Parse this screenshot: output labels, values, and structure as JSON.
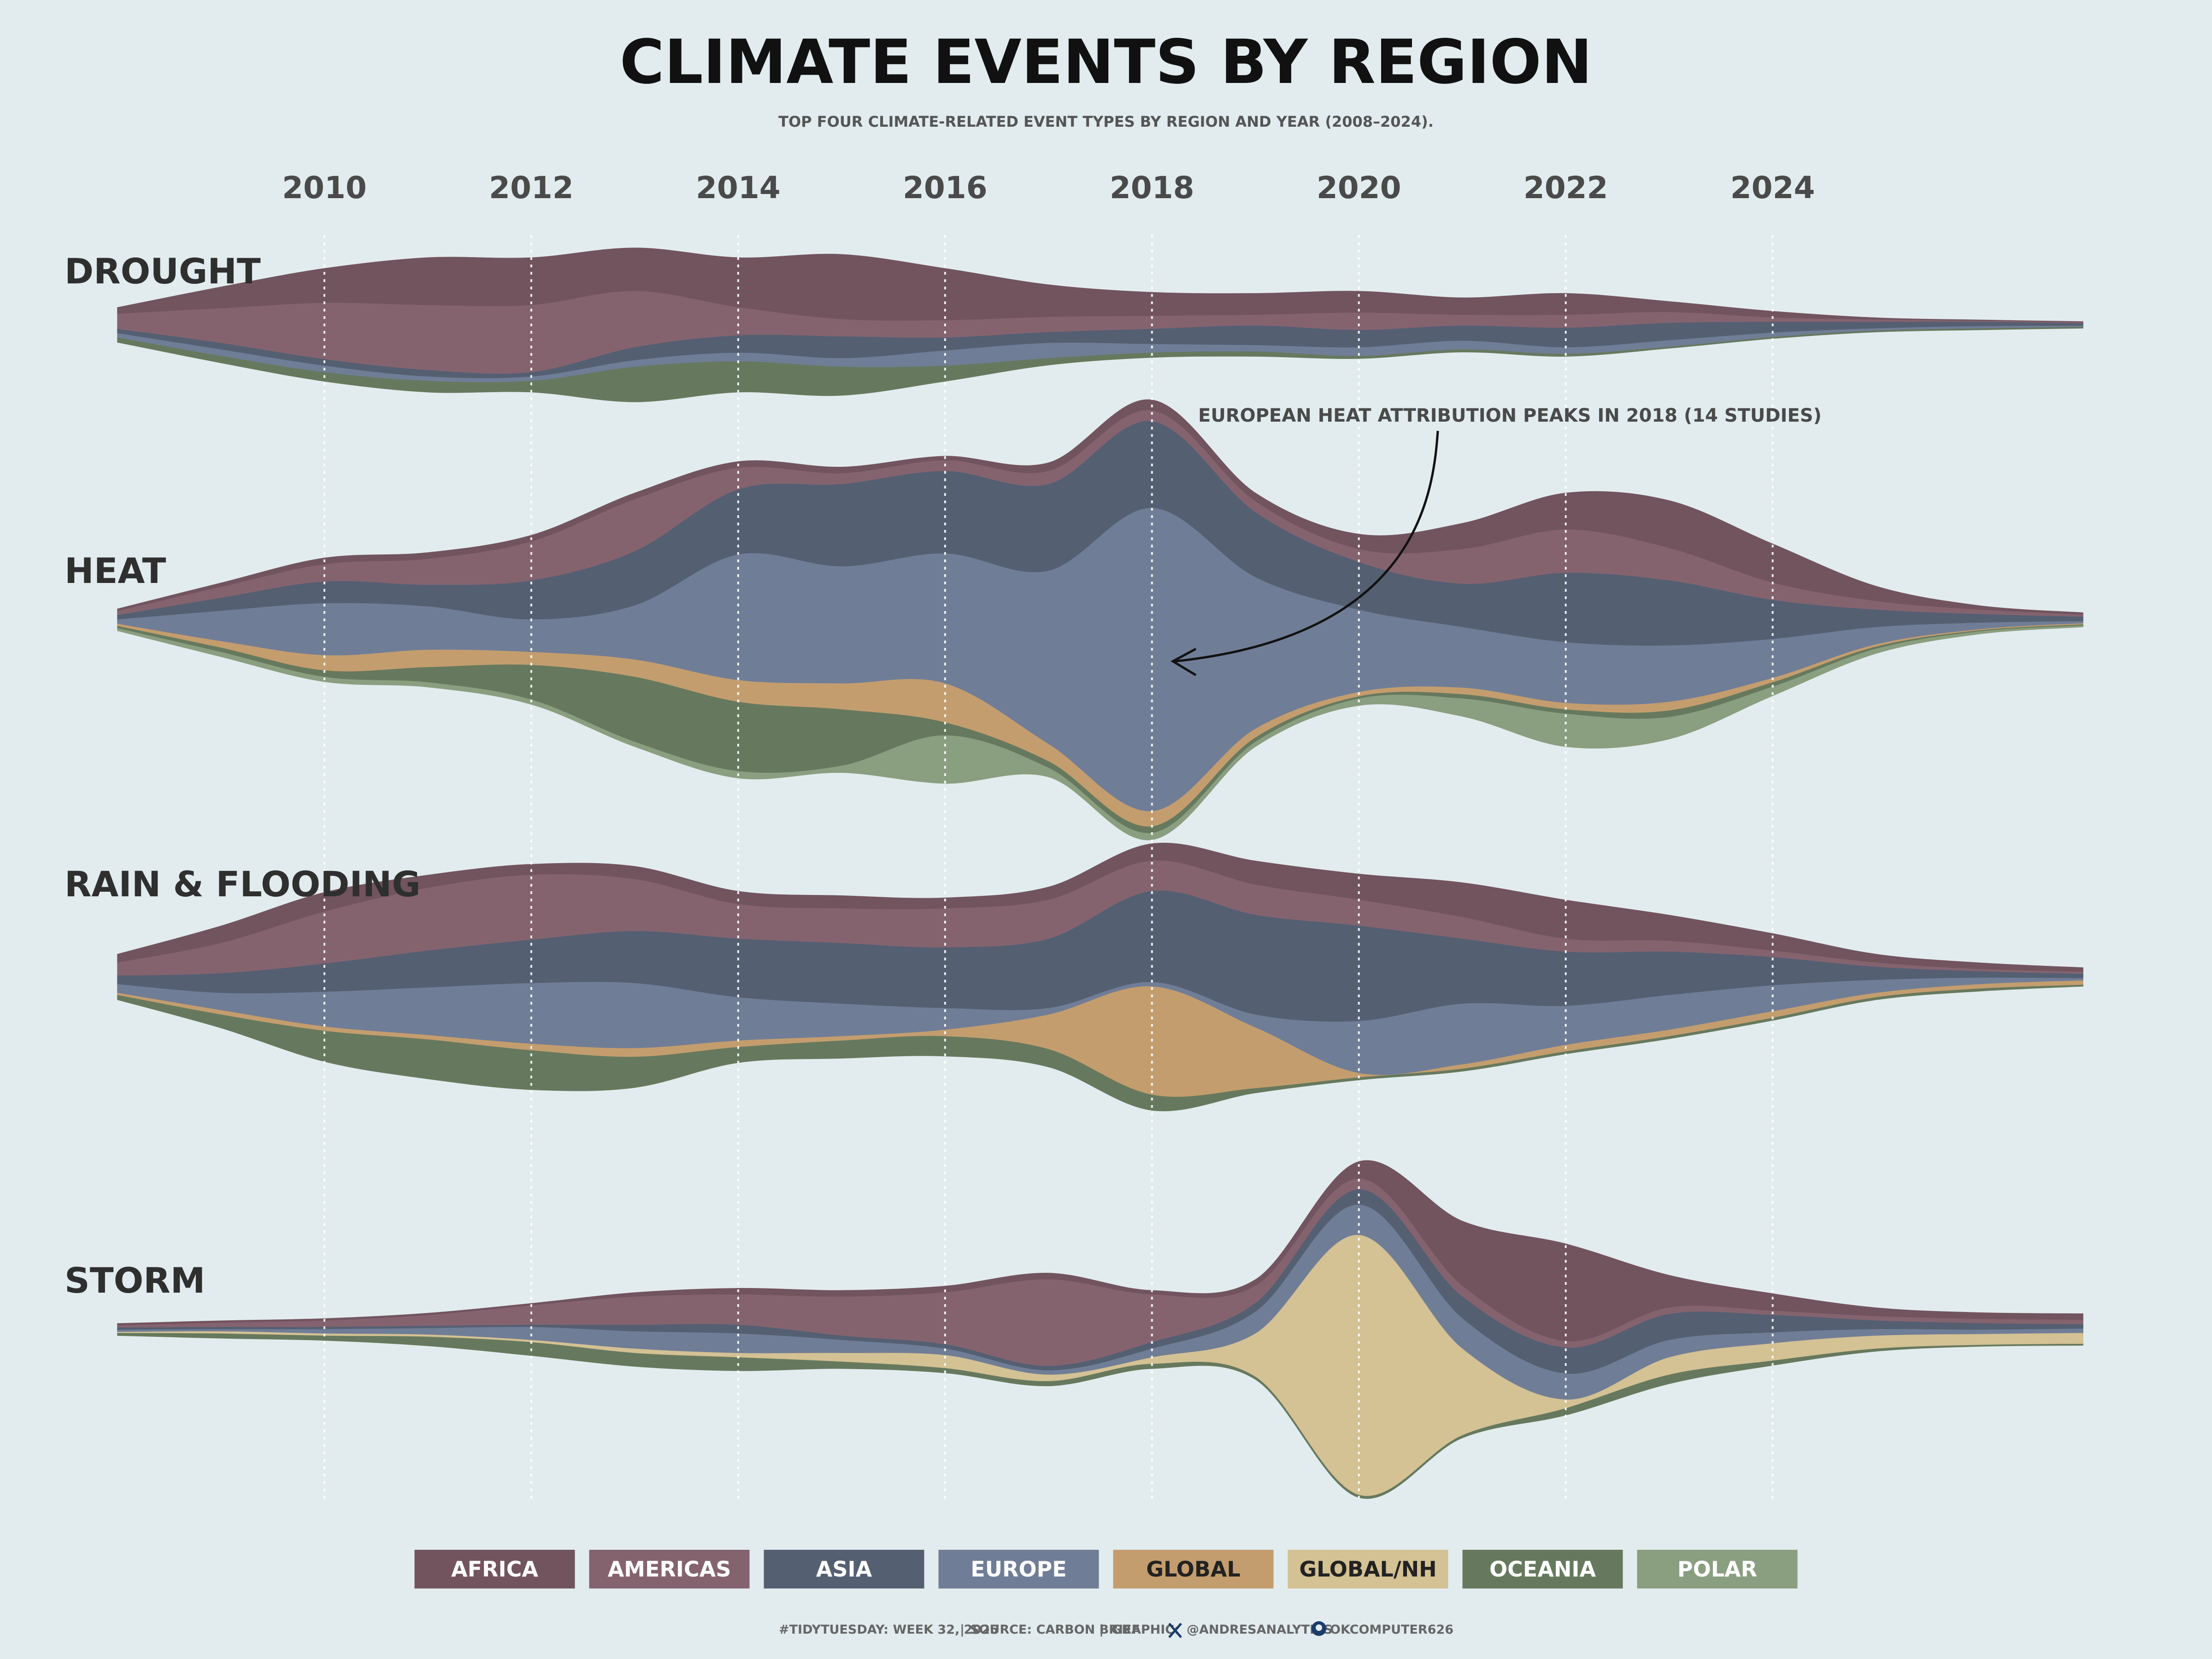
{
  "title": "CLIMATE EVENTS BY REGION",
  "subtitle": "TOP FOUR CLIMATE-RELATED EVENT TYPES BY REGION AND YEAR (2008–2024).",
  "annotation": "EUROPEAN HEAT ATTRIBUTION PEAKS IN 2018 (14 STUDIES)",
  "footer": {
    "hashtag": "#TIDYTUESDAY: WEEK 32, 2025",
    "source": "SOURCE: CARBON BRIEF",
    "graphic": "GRAPHIC:",
    "twitter_handle": "@ANDRESANALYTICS",
    "github_handle": "OKCOMPUTER626",
    "twitter_icon": "x-icon",
    "github_icon": "github-icon"
  },
  "chart_data": {
    "type": "area",
    "style": "streamgraph",
    "x": [
      2008,
      2009,
      2010,
      2011,
      2012,
      2013,
      2014,
      2015,
      2016,
      2017,
      2018,
      2019,
      2020,
      2021,
      2022,
      2023,
      2024,
      2025,
      2026,
      2027
    ],
    "x_tick_labels": [
      "2010",
      "2012",
      "2014",
      "2016",
      "2018",
      "2020",
      "2022",
      "2024"
    ],
    "x_ticks": [
      2010,
      2012,
      2014,
      2016,
      2018,
      2020,
      2022,
      2024
    ],
    "grid": "dotted vertical lines at each tick",
    "legend_position": "bottom",
    "region_colors": {
      "AFRICA": "#72545e",
      "AMERICAS": "#84636f",
      "ASIA": "#545f72",
      "EUROPE": "#707d96",
      "GLOBAL": "#c49d6e",
      "GLOBAL/NH": "#d4c194",
      "OCEANIA": "#66795e",
      "POLAR": "#8a9e80"
    },
    "legend_text_colors": {
      "AFRICA": "#ffffff",
      "AMERICAS": "#ffffff",
      "ASIA": "#ffffff",
      "EUROPE": "#ffffff",
      "GLOBAL": "#222222",
      "GLOBAL/NH": "#222222",
      "OCEANIA": "#ffffff",
      "POLAR": "#ffffff"
    },
    "regions": [
      "AFRICA",
      "AMERICAS",
      "ASIA",
      "EUROPE",
      "GLOBAL",
      "GLOBAL/NH",
      "OCEANIA",
      "POLAR"
    ],
    "panels": [
      {
        "event": "DROUGHT",
        "series": [
          {
            "name": "AFRICA",
            "values": [
              0.3,
              1.0,
              1.6,
              2.2,
              2.2,
              2.0,
              2.3,
              3.0,
              2.4,
              1.5,
              1.1,
              1.0,
              1.0,
              0.8,
              1.0,
              0.5,
              0.3,
              0.1,
              0.05,
              0.05
            ]
          },
          {
            "name": "AMERICAS",
            "values": [
              0.7,
              1.6,
              2.6,
              3.0,
              3.1,
              2.6,
              1.3,
              0.8,
              0.8,
              0.7,
              0.6,
              0.5,
              0.8,
              0.5,
              0.6,
              0.5,
              0.2,
              0.1,
              0.05,
              0.05
            ]
          },
          {
            "name": "ASIA",
            "values": [
              0.2,
              0.3,
              0.3,
              0.3,
              0.2,
              0.6,
              0.8,
              1.0,
              0.6,
              0.5,
              0.7,
              0.9,
              0.8,
              0.7,
              0.9,
              0.8,
              0.5,
              0.3,
              0.2,
              0.1
            ]
          },
          {
            "name": "EUROPE",
            "values": [
              0.2,
              0.3,
              0.3,
              0.2,
              0.2,
              0.3,
              0.4,
              0.4,
              0.7,
              0.7,
              0.4,
              0.3,
              0.4,
              0.4,
              0.3,
              0.3,
              0.2,
              0.1,
              0.1,
              0.05
            ]
          },
          {
            "name": "GLOBAL",
            "values": [
              0,
              0,
              0,
              0,
              0,
              0,
              0,
              0,
              0,
              0,
              0,
              0,
              0,
              0,
              0,
              0,
              0,
              0,
              0,
              0
            ]
          },
          {
            "name": "GLOBAL/NH",
            "values": [
              0,
              0,
              0,
              0,
              0,
              0,
              0,
              0,
              0,
              0,
              0,
              0,
              0,
              0,
              0,
              0,
              0,
              0,
              0,
              0
            ]
          },
          {
            "name": "OCEANIA",
            "values": [
              0.2,
              0.3,
              0.4,
              0.5,
              0.5,
              1.6,
              1.4,
              1.3,
              0.7,
              0.3,
              0.2,
              0.2,
              0.1,
              0.1,
              0.1,
              0.05,
              0.05,
              0.05,
              0.05,
              0.05
            ]
          },
          {
            "name": "POLAR",
            "values": [
              0,
              0,
              0,
              0,
              0,
              0,
              0,
              0,
              0,
              0,
              0,
              0,
              0,
              0,
              0,
              0,
              0,
              0,
              0,
              0
            ]
          }
        ]
      },
      {
        "event": "HEAT",
        "series": [
          {
            "name": "AFRICA",
            "values": [
              0.1,
              0.2,
              0.3,
              0.3,
              0.3,
              0.3,
              0.3,
              0.3,
              0.2,
              0.4,
              0.5,
              0.4,
              0.7,
              1.2,
              1.7,
              2.2,
              1.8,
              0.7,
              0.2,
              0.1
            ]
          },
          {
            "name": "AMERICAS",
            "values": [
              0.2,
              0.5,
              0.8,
              1.2,
              1.8,
              2.4,
              1.0,
              0.5,
              0.5,
              0.6,
              0.5,
              0.5,
              0.6,
              1.6,
              2.0,
              1.5,
              0.8,
              0.4,
              0.2,
              0.1
            ]
          },
          {
            "name": "ASIA",
            "values": [
              0.2,
              0.6,
              1.0,
              1.0,
              1.8,
              2.5,
              3.0,
              3.8,
              3.8,
              4.0,
              4.0,
              3.0,
              2.2,
              2.0,
              3.2,
              3.0,
              1.8,
              0.8,
              0.4,
              0.2
            ]
          },
          {
            "name": "EUROPE",
            "values": [
              0.2,
              1.4,
              2.4,
              2.0,
              1.5,
              2.5,
              5.8,
              5.4,
              6.0,
              8.0,
              14.0,
              7.0,
              3.8,
              2.8,
              2.8,
              2.6,
              1.8,
              0.8,
              0.3,
              0.1
            ]
          },
          {
            "name": "GLOBAL",
            "values": [
              0.1,
              0.3,
              0.7,
              0.8,
              0.6,
              0.8,
              1.0,
              1.2,
              1.8,
              0.8,
              0.7,
              0.4,
              0.2,
              0.3,
              0.3,
              0.4,
              0.2,
              0.1,
              0.05,
              0.05
            ]
          },
          {
            "name": "GLOBAL/NH",
            "values": [
              0,
              0,
              0,
              0,
              0,
              0,
              0,
              0,
              0,
              0,
              0,
              0,
              0,
              0,
              0,
              0,
              0,
              0,
              0,
              0
            ]
          },
          {
            "name": "OCEANIA",
            "values": [
              0.1,
              0.2,
              0.3,
              0.7,
              1.6,
              3.0,
              3.2,
              2.6,
              0.6,
              0.3,
              0.3,
              0.2,
              0.1,
              0.2,
              0.2,
              0.3,
              0.2,
              0.1,
              0.05,
              0.05
            ]
          },
          {
            "name": "POLAR",
            "values": [
              0.1,
              0.2,
              0.2,
              0.2,
              0.2,
              0.2,
              0.3,
              0.3,
              2.2,
              0.4,
              0.3,
              0.2,
              0.3,
              0.8,
              1.5,
              1.0,
              0.4,
              0.2,
              0.1,
              0.05
            ]
          }
        ]
      },
      {
        "event": "RAIN & FLOODING",
        "series": [
          {
            "name": "AFRICA",
            "values": [
              0.4,
              0.8,
              0.9,
              0.6,
              0.5,
              0.6,
              0.6,
              0.6,
              0.5,
              0.6,
              0.8,
              1.1,
              1.2,
              1.6,
              1.8,
              1.2,
              0.8,
              0.4,
              0.3,
              0.2
            ]
          },
          {
            "name": "AMERICAS",
            "values": [
              0.6,
              1.4,
              2.4,
              2.9,
              3.0,
              2.4,
              1.6,
              1.6,
              1.8,
              1.8,
              1.4,
              1.4,
              1.2,
              1.0,
              0.6,
              0.5,
              0.3,
              0.2,
              0.1,
              0.1
            ]
          },
          {
            "name": "ASIA",
            "values": [
              0.4,
              0.9,
              1.3,
              1.7,
              2.0,
              2.4,
              2.7,
              2.8,
              2.8,
              3.2,
              4.2,
              4.6,
              4.4,
              3.0,
              2.5,
              2.0,
              1.3,
              0.6,
              0.3,
              0.2
            ]
          },
          {
            "name": "EUROPE",
            "values": [
              0.4,
              0.8,
              1.6,
              2.2,
              2.8,
              3.0,
              2.0,
              1.5,
              1.0,
              0.3,
              0.2,
              0.6,
              2.4,
              2.8,
              1.8,
              1.6,
              1.2,
              0.6,
              0.3,
              0.1
            ]
          },
          {
            "name": "GLOBAL",
            "values": [
              0.1,
              0.2,
              0.2,
              0.2,
              0.3,
              0.4,
              0.3,
              0.2,
              0.3,
              1.6,
              5.0,
              2.8,
              0.2,
              0.2,
              0.3,
              0.3,
              0.3,
              0.2,
              0.2,
              0.2
            ]
          },
          {
            "name": "GLOBAL/NH",
            "values": [
              0,
              0,
              0,
              0,
              0,
              0,
              0,
              0,
              0,
              0,
              0,
              0,
              0,
              0,
              0,
              0,
              0,
              0,
              0,
              0
            ]
          },
          {
            "name": "OCEANIA",
            "values": [
              0.2,
              0.6,
              1.4,
              1.8,
              1.8,
              1.4,
              0.7,
              0.8,
              0.9,
              0.8,
              0.7,
              0.2,
              0.1,
              0.1,
              0.1,
              0.1,
              0.1,
              0.1,
              0.1,
              0.05
            ]
          },
          {
            "name": "POLAR",
            "values": [
              0,
              0,
              0,
              0,
              0,
              0,
              0,
              0,
              0,
              0,
              0,
              0,
              0,
              0,
              0,
              0,
              0,
              0,
              0,
              0
            ]
          }
        ]
      },
      {
        "event": "STORM",
        "series": [
          {
            "name": "AFRICA",
            "values": [
              0.1,
              0.1,
              0.1,
              0.1,
              0.1,
              0.2,
              0.3,
              0.3,
              0.3,
              0.3,
              0.2,
              0.3,
              0.8,
              3.0,
              4.5,
              1.5,
              0.8,
              0.4,
              0.3,
              0.3
            ]
          },
          {
            "name": "AMERICAS",
            "values": [
              0.1,
              0.2,
              0.3,
              0.5,
              0.9,
              1.3,
              1.4,
              1.8,
              2.4,
              4.0,
              2.2,
              0.8,
              0.5,
              0.5,
              0.3,
              0.3,
              0.2,
              0.2,
              0.2,
              0.2
            ]
          },
          {
            "name": "ASIA",
            "values": [
              0.1,
              0.1,
              0.1,
              0.1,
              0.1,
              0.3,
              0.4,
              0.2,
              0.2,
              0.2,
              0.3,
              0.4,
              0.7,
              1.0,
              1.2,
              1.2,
              0.8,
              0.4,
              0.3,
              0.2
            ]
          },
          {
            "name": "EUROPE",
            "values": [
              0.1,
              0.1,
              0.2,
              0.3,
              0.6,
              0.8,
              0.9,
              0.6,
              0.3,
              0.2,
              0.4,
              1.0,
              1.4,
              1.4,
              1.2,
              0.8,
              0.5,
              0.3,
              0.2,
              0.2
            ]
          },
          {
            "name": "GLOBAL",
            "values": [
              0,
              0,
              0,
              0,
              0,
              0,
              0,
              0,
              0,
              0,
              0,
              0,
              0,
              0,
              0,
              0,
              0,
              0,
              0,
              0
            ]
          },
          {
            "name": "GLOBAL/NH",
            "values": [
              0.05,
              0.1,
              0.1,
              0.1,
              0.1,
              0.2,
              0.2,
              0.4,
              0.6,
              0.3,
              0.3,
              2.0,
              12.0,
              4.0,
              0.4,
              0.8,
              0.8,
              0.6,
              0.5,
              0.5
            ]
          },
          {
            "name": "OCEANIA",
            "values": [
              0.1,
              0.2,
              0.2,
              0.4,
              0.6,
              0.6,
              0.6,
              0.3,
              0.2,
              0.2,
              0.2,
              0.1,
              0.1,
              0.1,
              0.3,
              0.4,
              0.2,
              0.1,
              0.05,
              0.05
            ]
          },
          {
            "name": "POLAR",
            "values": [
              0,
              0,
              0,
              0,
              0,
              0,
              0,
              0,
              0,
              0,
              0,
              0,
              0,
              0,
              0,
              0,
              0,
              0,
              0,
              0
            ]
          }
        ]
      }
    ]
  }
}
